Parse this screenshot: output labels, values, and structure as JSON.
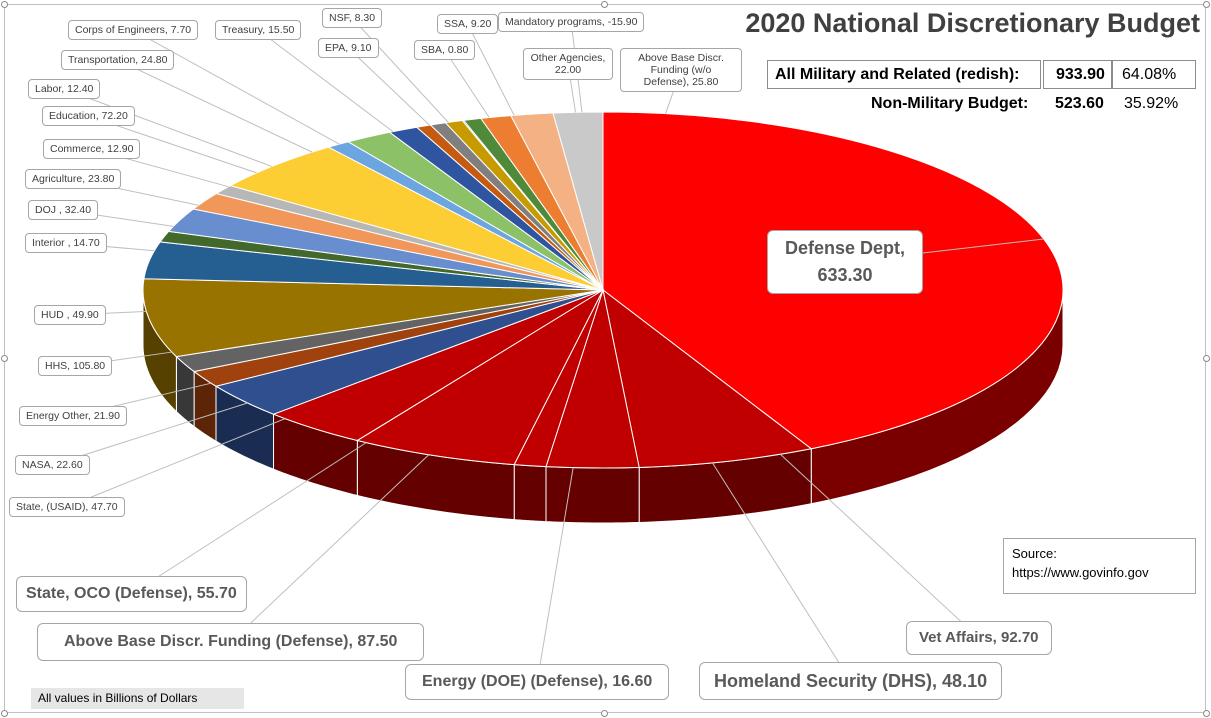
{
  "title": "2020 National Discretionary Budget",
  "summary": {
    "military_label": "All Military and Related (redish):",
    "military_value": "933.90",
    "military_pct": "64.08%",
    "nonmilitary_label": "Non-Military Budget:",
    "nonmilitary_value": "523.60",
    "nonmilitary_pct": "35.92%"
  },
  "source": {
    "line1": "Source:",
    "line2": "https://www.govinfo.gov"
  },
  "footnote": "All values in Billions of Dollars",
  "chart_data": {
    "type": "pie",
    "title": "2020 National Discretionary Budget",
    "unit": "Billions of Dollars",
    "start_angle_deg": 0,
    "direction": "clockwise",
    "slices": [
      {
        "label": "Defense Dept",
        "value": 633.3,
        "text": "Defense Dept, 633.30",
        "color": "#ff0000",
        "side": "#7a0000"
      },
      {
        "label": "Vet Affairs",
        "value": 92.7,
        "text": "Vet Affairs, 92.70",
        "color": "#c00000",
        "side": "#650000"
      },
      {
        "label": "Homeland Security (DHS)",
        "value": 48.1,
        "text": "Homeland Security (DHS), 48.10",
        "color": "#c00000",
        "side": "#650000"
      },
      {
        "label": "Energy (DOE) (Defense)",
        "value": 16.6,
        "text": "Energy (DOE) (Defense), 16.60",
        "color": "#c00000",
        "side": "#650000"
      },
      {
        "label": "Above Base Discr. Funding (Defense)",
        "value": 87.5,
        "text": "Above Base Discr. Funding (Defense), 87.50",
        "color": "#c00000",
        "side": "#650000"
      },
      {
        "label": "State, OCO (Defense)",
        "value": 55.7,
        "text": "State, OCO (Defense), 55.70",
        "color": "#c00000",
        "side": "#650000"
      },
      {
        "label": "State, (USAID)",
        "value": 47.7,
        "text": "State, (USAID), 47.70",
        "color": "#2f4f8f",
        "side": "#1a2c52"
      },
      {
        "label": "NASA",
        "value": 22.6,
        "text": "NASA, 22.60",
        "color": "#a0420d",
        "side": "#5c2507"
      },
      {
        "label": "Energy Other",
        "value": 21.9,
        "text": "Energy Other, 21.90",
        "color": "#636363",
        "side": "#383838"
      },
      {
        "label": "HHS",
        "value": 105.8,
        "text": "HHS, 105.80",
        "color": "#997300",
        "side": "#574100"
      },
      {
        "label": "HUD",
        "value": 49.9,
        "text": "HUD , 49.90",
        "color": "#255e91",
        "side": "#153652"
      },
      {
        "label": "Interior",
        "value": 14.7,
        "text": "Interior , 14.70",
        "color": "#43682b",
        "side": "#263b18"
      },
      {
        "label": "DOJ",
        "value": 32.4,
        "text": "DOJ , 32.40",
        "color": "#698ed0",
        "side": "#3b5176"
      },
      {
        "label": "Agriculture",
        "value": 23.8,
        "text": "Agriculture, 23.80",
        "color": "#f1975a",
        "side": "#8a5633"
      },
      {
        "label": "Commerce",
        "value": 12.9,
        "text": "Commerce, 12.90",
        "color": "#b7b7b7",
        "side": "#686868"
      },
      {
        "label": "Education",
        "value": 72.2,
        "text": "Education, 72.20",
        "color": "#fdcd34",
        "side": "#90751d"
      },
      {
        "label": "Labor",
        "value": 12.4,
        "text": "Labor, 12.40",
        "color": "#6ba6e0",
        "side": "#3d5f80"
      },
      {
        "label": "Transportation",
        "value": 24.8,
        "text": "Transportation, 24.80",
        "color": "#8cc168",
        "side": "#506e3b"
      },
      {
        "label": "Treasury",
        "value": 15.5,
        "text": "Treasury, 15.50",
        "color": "#2f55a1",
        "side": "#1b305c"
      },
      {
        "label": "Corps of Engineers",
        "value": 7.7,
        "text": "Corps of Engineers, 7.70",
        "color": "#c55a11",
        "side": "#70330a"
      },
      {
        "label": "NSF",
        "value": 8.3,
        "text": "NSF, 8.30",
        "color": "#7f7f7f",
        "side": "#484848"
      },
      {
        "label": "EPA",
        "value": 9.1,
        "text": "EPA, 9.10",
        "color": "#c79b00",
        "side": "#715800"
      },
      {
        "label": "SBA",
        "value": 0.8,
        "text": "SBA, 0.80",
        "color": "#3a5fb0",
        "side": "#213664"
      },
      {
        "label": "SSA",
        "value": 9.2,
        "text": "SSA, 9.20",
        "color": "#4e8a3a",
        "side": "#2c4f21"
      },
      {
        "label": "Mandatory programs",
        "value": -15.9,
        "text": "Mandatory programs, -15.90",
        "color": "#ed7d31",
        "side": "#87471c"
      },
      {
        "label": "Other Agencies",
        "value": 22.0,
        "text": "Other Agencies, 22.00",
        "color": "#f4b183",
        "side": "#8b654b"
      },
      {
        "label": "Above Base Discr. Funding (w/o Defense)",
        "value": 25.8,
        "text": "Above Base Discr. Funding (w/o Defense), 25.80",
        "color": "#c9c9c9",
        "side": "#737373"
      }
    ],
    "legend": "none"
  }
}
